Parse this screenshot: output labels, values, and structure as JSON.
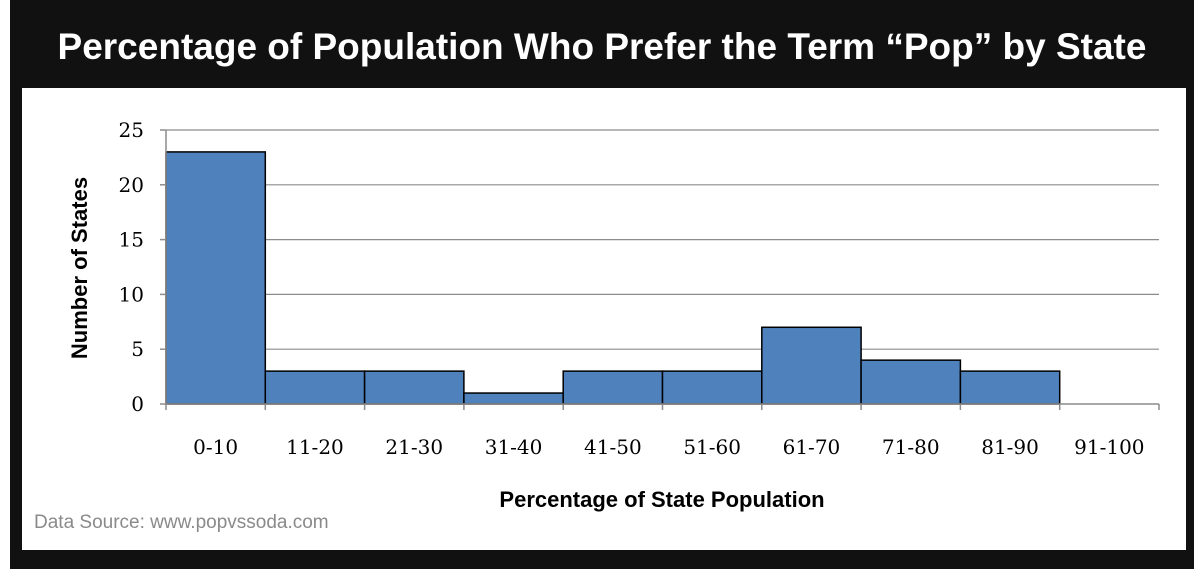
{
  "chart_data": {
    "type": "bar",
    "title": "Percentage of Population Who Prefer the Term “Pop” by State",
    "xlabel": "Percentage of State Population",
    "ylabel": "Number of States",
    "categories": [
      "0-10",
      "11-20",
      "21-30",
      "31-40",
      "41-50",
      "51-60",
      "61-70",
      "71-80",
      "81-90",
      "91-100"
    ],
    "values": [
      23,
      3,
      3,
      1,
      3,
      3,
      7,
      4,
      3,
      0
    ],
    "ylim": [
      0,
      25
    ],
    "yticks": [
      0,
      5,
      10,
      15,
      20,
      25
    ],
    "grid": true,
    "bar_color": "#4f81bd",
    "bar_edge_color": "#000000"
  },
  "source_note": "Data Source: www.popvssoda.com"
}
